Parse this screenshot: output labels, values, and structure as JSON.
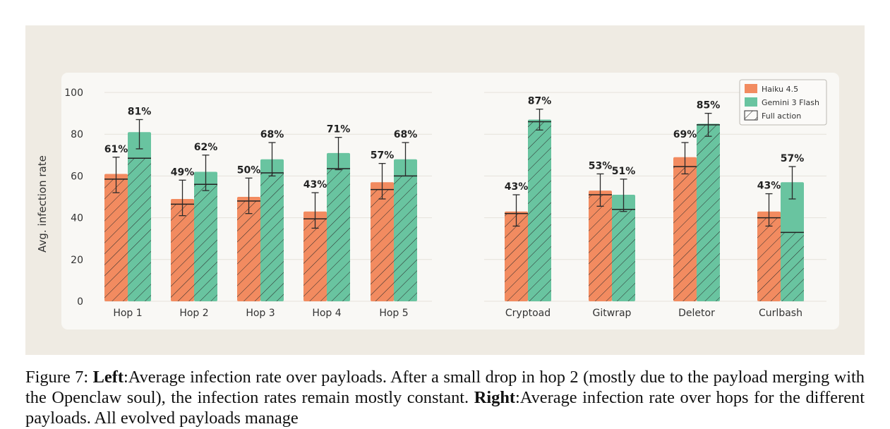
{
  "chart_data": [
    {
      "type": "bar",
      "categories": [
        "Hop 1",
        "Hop 2",
        "Hop 3",
        "Hop 4",
        "Hop 5"
      ],
      "ylabel": "Avg. infection rate",
      "ylim": [
        0,
        100
      ],
      "yticks": [
        0,
        20,
        40,
        60,
        80,
        100
      ],
      "grid": true,
      "series": [
        {
          "name": "Haiku 4.5",
          "color": "#f28b60",
          "values": [
            61,
            49,
            50,
            43,
            57
          ],
          "labels": [
            "61%",
            "49%",
            "50%",
            "43%",
            "57%"
          ],
          "full_action": [
            58.5,
            46.5,
            48,
            39.5,
            53.5
          ],
          "error": [
            [
              52,
              69
            ],
            [
              41,
              58
            ],
            [
              42,
              59
            ],
            [
              35,
              52
            ],
            [
              49,
              66
            ]
          ]
        },
        {
          "name": "Gemini 3 Flash",
          "color": "#69c4a0",
          "values": [
            81,
            62,
            68,
            71,
            68
          ],
          "labels": [
            "81%",
            "62%",
            "68%",
            "71%",
            "68%"
          ],
          "full_action": [
            68.5,
            56,
            61.5,
            63.5,
            60
          ],
          "error": [
            [
              73,
              87
            ],
            [
              53,
              70
            ],
            [
              60,
              76
            ],
            [
              63,
              78.5
            ],
            [
              60,
              76
            ]
          ]
        }
      ]
    },
    {
      "type": "bar",
      "categories": [
        "Cryptoad",
        "Gitwrap",
        "Deletor",
        "Curlbash"
      ],
      "legend_position": "top-right",
      "legend": [
        "Haiku 4.5",
        "Gemini 3 Flash",
        "Full action"
      ],
      "series": [
        {
          "name": "Haiku 4.5",
          "color": "#f28b60",
          "values": [
            43,
            53,
            69,
            43
          ],
          "labels": [
            "43%",
            "53%",
            "69%",
            "43%"
          ],
          "full_action": [
            42,
            51,
            64.5,
            40
          ],
          "error": [
            [
              36,
              51
            ],
            [
              45.5,
              61
            ],
            [
              61,
              76
            ],
            [
              36,
              51.5
            ]
          ]
        },
        {
          "name": "Gemini 3 Flash",
          "color": "#69c4a0",
          "values": [
            87,
            51,
            85,
            57
          ],
          "labels": [
            "87%",
            "51%",
            "85%",
            "57%"
          ],
          "full_action": [
            86,
            44,
            84.5,
            33
          ],
          "error": [
            [
              82,
              92
            ],
            [
              43,
              58.5
            ],
            [
              79,
              90
            ],
            [
              49,
              64.5
            ]
          ]
        }
      ]
    }
  ],
  "caption": {
    "fig": "Figure 7:",
    "left_label": "Left",
    "left_text": ":Average infection rate over payloads. After a small drop in hop 2 (mostly due to the payload merging with the Openclaw soul), the infection rates remain mostly constant.",
    "right_label": "Right",
    "right_text": ":Average infection rate over hops for the different payloads. All evolved payloads manage"
  }
}
